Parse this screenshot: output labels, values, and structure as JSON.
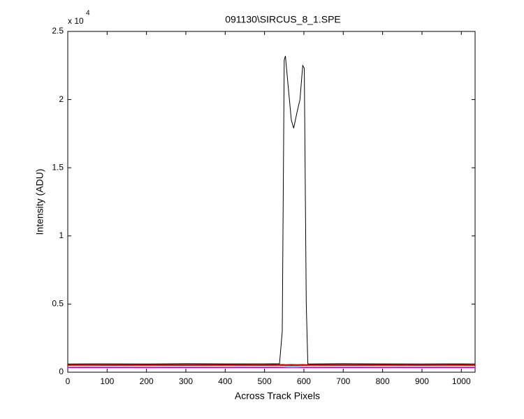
{
  "chart_data": {
    "type": "line",
    "title": "091130\\SIRCUS_8_1.SPE",
    "x_label": "Across Track Pixels",
    "y_label": "Intensity (ADU)",
    "y_multiplier": {
      "base": "x 10",
      "exponent": "4"
    },
    "x": [
      0,
      100,
      200,
      300,
      400,
      500,
      538,
      545,
      550,
      553,
      560,
      568,
      574,
      582,
      590,
      597,
      601,
      606,
      610,
      700,
      800,
      900,
      1000,
      1035
    ],
    "series": [
      {
        "color": "#0000ff",
        "values": [
          560,
          565,
          560,
          570,
          565,
          560,
          565,
          570,
          565,
          560,
          565,
          570,
          565,
          560,
          565,
          570,
          565,
          560,
          565,
          570,
          565,
          560,
          565,
          560
        ]
      },
      {
        "color": "#ff0000",
        "values": [
          540,
          545,
          540,
          545,
          540,
          545,
          540,
          545,
          540,
          545,
          540,
          545,
          540,
          545,
          540,
          545,
          540,
          545,
          540,
          545,
          540,
          545,
          540,
          545
        ]
      },
      {
        "color": "#008000",
        "values": [
          480,
          485,
          480,
          485,
          480,
          485,
          480,
          485,
          480,
          485,
          480,
          485,
          480,
          485,
          480,
          485,
          480,
          485,
          480,
          485,
          480,
          485,
          480,
          485
        ]
      },
      {
        "color": "#00bfbf",
        "values": [
          380,
          385,
          380,
          385,
          380,
          385,
          380,
          390,
          400,
          410,
          420,
          430,
          430,
          420,
          410,
          400,
          390,
          385,
          380,
          385,
          380,
          385,
          380,
          385
        ]
      },
      {
        "color": "#bf00bf",
        "values": [
          330,
          335,
          330,
          335,
          330,
          335,
          330,
          335,
          330,
          335,
          330,
          335,
          330,
          335,
          330,
          335,
          330,
          335,
          330,
          335,
          330,
          335,
          330,
          335
        ]
      },
      {
        "color": "#000000",
        "values": [
          600,
          610,
          600,
          620,
          610,
          610,
          620,
          3000,
          22900,
          23200,
          21000,
          18500,
          17900,
          19000,
          20000,
          22500,
          22300,
          5000,
          600,
          620,
          610,
          600,
          610,
          600
        ]
      }
    ],
    "xlim": [
      0,
      1035
    ],
    "xticks": [
      0,
      100,
      200,
      300,
      400,
      500,
      600,
      700,
      800,
      900,
      1000
    ],
    "ylim": [
      0,
      25000
    ],
    "yticks": [
      0,
      {
        "value": 5000,
        "label": "0.5"
      },
      {
        "value": 10000,
        "label": "1"
      },
      {
        "value": 15000,
        "label": "1.5"
      },
      {
        "value": 20000,
        "label": "2"
      },
      {
        "value": 25000,
        "label": "2.5"
      }
    ],
    "grid": false
  }
}
